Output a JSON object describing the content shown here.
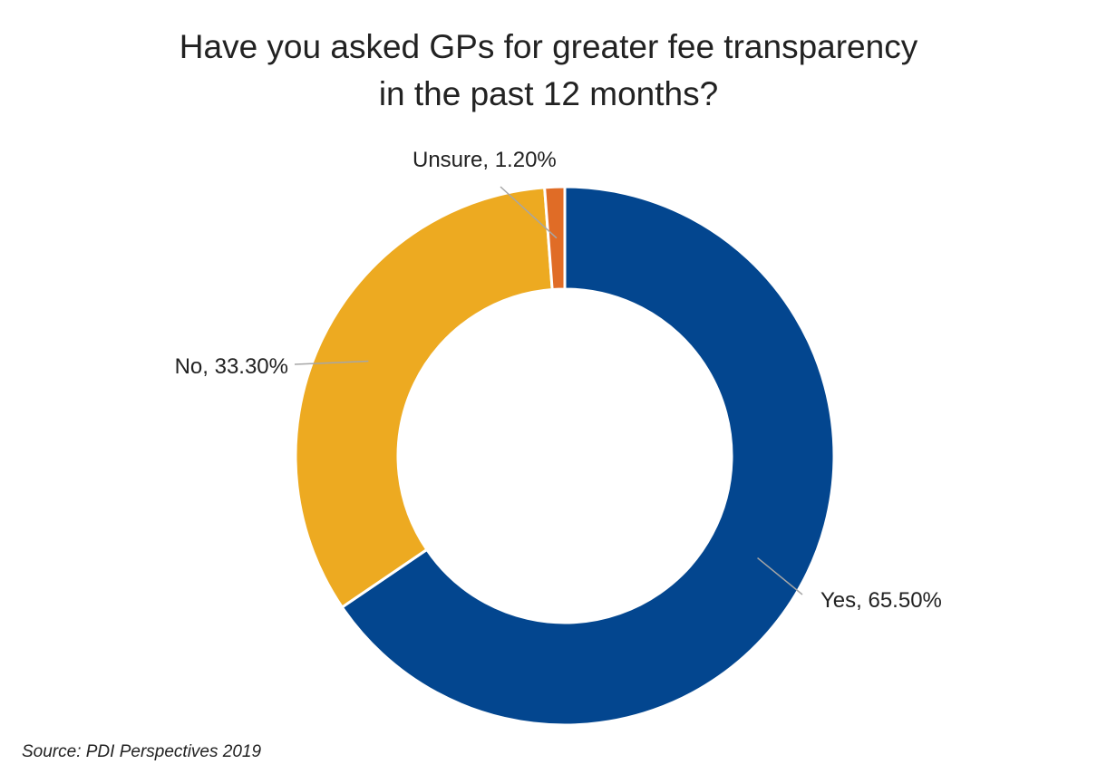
{
  "chart_data": {
    "type": "pie",
    "variant": "donut",
    "title_lines": [
      "Have you asked GPs for greater fee transparency",
      "in the past 12 months?"
    ],
    "slices": [
      {
        "label": "Yes, 65.50%",
        "category": "Yes",
        "value": 65.5,
        "color": "#03468F"
      },
      {
        "label": "No, 33.30%",
        "category": "No",
        "value": 33.3,
        "color": "#EDAA21"
      },
      {
        "label": "Unsure, 1.20%",
        "category": "Unsure",
        "value": 1.2,
        "color": "#E06C26"
      }
    ],
    "source": "Source: PDI Perspectives 2019"
  }
}
